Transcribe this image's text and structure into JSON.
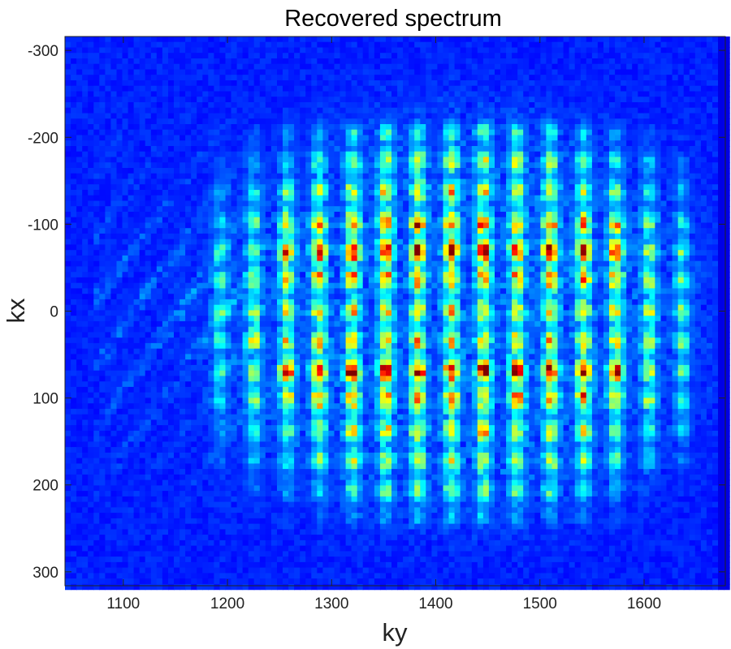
{
  "chart_data": {
    "type": "heatmap",
    "title": "Recovered spectrum",
    "xlabel": "ky",
    "ylabel": "kx",
    "xlim": [
      1044,
      1678
    ],
    "ylim": [
      -316,
      316
    ],
    "y_reversed": true,
    "xticks": [
      1100,
      1200,
      1300,
      1400,
      1500,
      1600
    ],
    "yticks": [
      -300,
      -200,
      -100,
      0,
      100,
      200,
      300
    ],
    "colormap": "jet",
    "grid": false,
    "stripe_ky_centers": [
      1193,
      1225,
      1257,
      1288,
      1320,
      1352,
      1383,
      1415,
      1446,
      1478,
      1510,
      1542,
      1573,
      1605,
      1637
    ],
    "hot_kx_bands": [
      [
        -100,
        -40
      ],
      [
        50,
        100
      ]
    ],
    "support_kx_range": [
      -230,
      240
    ],
    "support_ky_range": [
      1170,
      1670
    ]
  }
}
